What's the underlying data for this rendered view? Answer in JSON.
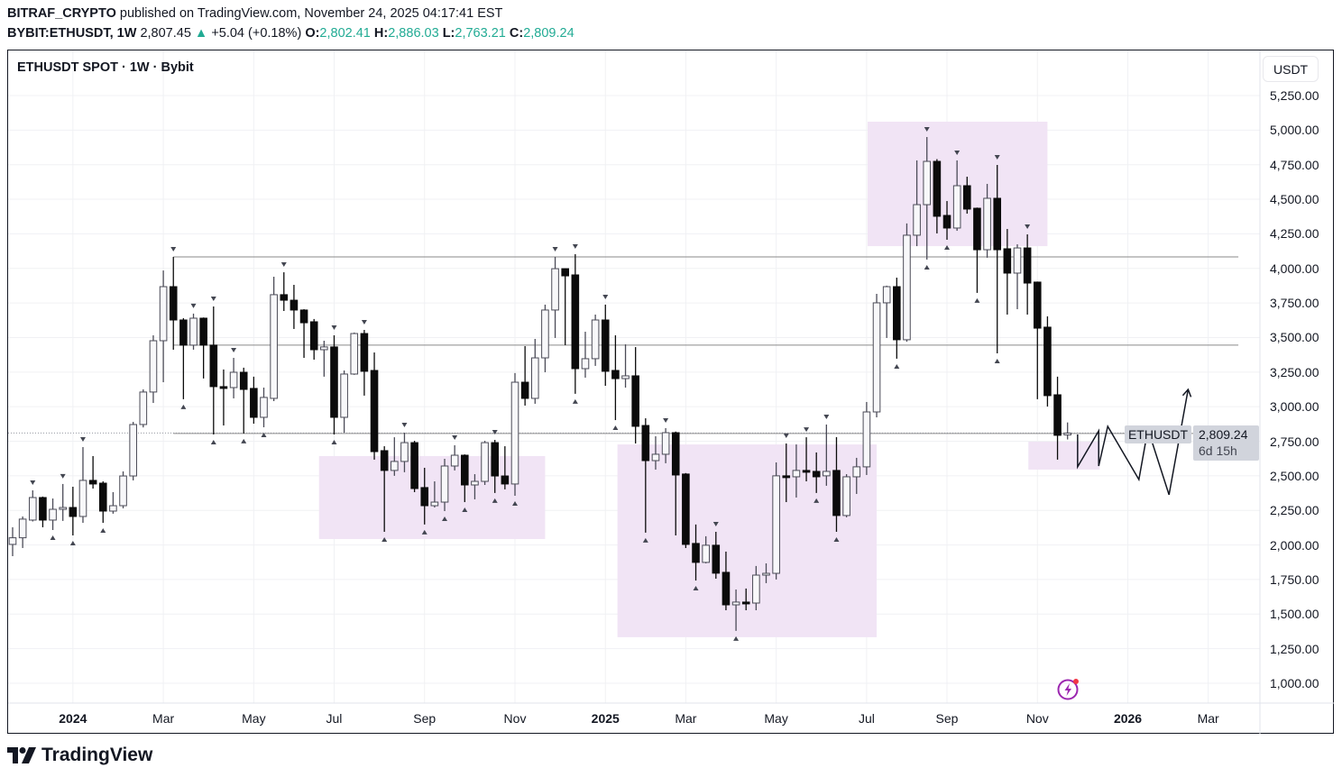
{
  "header": {
    "author": "BITRAF_CRYPTO",
    "published_text": "published on TradingView.com, November 24, 2025 04:17:41 EST",
    "symbol": "BYBIT:ETHUSDT, 1W",
    "last_price": "2,807.45",
    "change": "+5.04 (+0.18%)",
    "o_label": "O:",
    "o": "2,802.41",
    "h_label": "H:",
    "h": "2,886.03",
    "l_label": "L:",
    "l": "2,763.21",
    "c_label": "C:",
    "c": "2,809.24"
  },
  "legend": "ETHUSDT SPOT · 1W · Bybit",
  "currency": "USDT",
  "price_tag": {
    "symbol": "ETHUSDT",
    "price": "2,809.24",
    "countdown": "6d 15h"
  },
  "brand": "TradingView",
  "colors": {
    "up_fill": "#f8f8fa",
    "up_border": "#4b4b57",
    "down": "#0b0b0b",
    "zone": "#f1e4f5",
    "level_line": "#8a8a8a",
    "accent": "#22ab94",
    "bolt": "#9c27b0"
  },
  "chart_data": {
    "type": "candlestick",
    "title": "ETHUSDT SPOT · 1W · Bybit",
    "interval": "1W",
    "first_candle_week": "2023-11-20",
    "ylim": [
      880,
      5370
    ],
    "y_ticks": [
      "5,250.00",
      "5,000.00",
      "4,750.00",
      "4,500.00",
      "4,250.00",
      "4,000.00",
      "3,750.00",
      "3,500.00",
      "3,250.00",
      "3,000.00",
      "2,750.00",
      "2,500.00",
      "2,250.00",
      "2,000.00",
      "1,750.00",
      "1,500.00",
      "1,250.00",
      "1,000.00"
    ],
    "y_tick_values": [
      5250,
      5000,
      4750,
      4500,
      4250,
      4000,
      3750,
      3500,
      3250,
      3000,
      2750,
      2500,
      2250,
      2000,
      1750,
      1500,
      1250,
      1000
    ],
    "x_ticks": [
      {
        "label": "2024",
        "week": 6,
        "year": true
      },
      {
        "label": "Mar",
        "week": 15
      },
      {
        "label": "May",
        "week": 24
      },
      {
        "label": "Jul",
        "week": 32
      },
      {
        "label": "Sep",
        "week": 41
      },
      {
        "label": "Nov",
        "week": 50
      },
      {
        "label": "2025",
        "week": 59,
        "year": true
      },
      {
        "label": "Mar",
        "week": 67
      },
      {
        "label": "May",
        "week": 76
      },
      {
        "label": "Jul",
        "week": 85
      },
      {
        "label": "Sep",
        "week": 93
      },
      {
        "label": "Nov",
        "week": 102
      },
      {
        "label": "2026",
        "week": 111,
        "year": true
      },
      {
        "label": "Mar",
        "week": 119
      }
    ],
    "week_range": [
      -0.5,
      124.5
    ],
    "ohlc": [
      [
        2004,
        2128,
        1919,
        2052
      ],
      [
        2052,
        2206,
        1978,
        2187
      ],
      [
        2180,
        2395,
        2170,
        2343
      ],
      [
        2343,
        2350,
        2128,
        2180
      ],
      [
        2180,
        2336,
        2108,
        2258
      ],
      [
        2258,
        2441,
        2174,
        2271
      ],
      [
        2271,
        2421,
        2069,
        2206
      ],
      [
        2206,
        2708,
        2160,
        2467
      ],
      [
        2467,
        2643,
        2408,
        2441
      ],
      [
        2447,
        2460,
        2160,
        2245
      ],
      [
        2245,
        2382,
        2226,
        2284
      ],
      [
        2284,
        2532,
        2265,
        2499
      ],
      [
        2499,
        2890,
        2467,
        2871
      ],
      [
        2871,
        3125,
        2850,
        3106
      ],
      [
        3106,
        3516,
        3027,
        3477
      ],
      [
        3477,
        3985,
        3177,
        3868
      ],
      [
        3868,
        4083,
        3412,
        3627
      ],
      [
        3627,
        3640,
        3054,
        3445
      ],
      [
        3445,
        3673,
        3412,
        3640
      ],
      [
        3640,
        3645,
        3204,
        3445
      ],
      [
        3445,
        3725,
        2799,
        3145
      ],
      [
        3145,
        3269,
        2864,
        3138
      ],
      [
        3138,
        3353,
        3060,
        3249
      ],
      [
        3249,
        3282,
        2806,
        3125
      ],
      [
        3132,
        3217,
        2877,
        2923
      ],
      [
        2923,
        3138,
        2851,
        3067
      ],
      [
        3060,
        3940,
        3040,
        3810
      ],
      [
        3810,
        3972,
        3692,
        3770
      ],
      [
        3770,
        3881,
        3562,
        3699
      ],
      [
        3699,
        3705,
        3353,
        3607
      ],
      [
        3614,
        3634,
        3340,
        3412
      ],
      [
        3412,
        3477,
        3217,
        3432
      ],
      [
        3432,
        3516,
        2799,
        2923
      ],
      [
        2923,
        3262,
        2812,
        3236
      ],
      [
        3236,
        3536,
        3230,
        3529
      ],
      [
        3529,
        3555,
        3080,
        3256
      ],
      [
        3262,
        3392,
        2617,
        2675
      ],
      [
        2682,
        2714,
        2095,
        2539
      ],
      [
        2539,
        2779,
        2500,
        2604
      ],
      [
        2604,
        2812,
        2526,
        2740
      ],
      [
        2740,
        2753,
        2382,
        2408
      ],
      [
        2415,
        2558,
        2148,
        2284
      ],
      [
        2284,
        2460,
        2271,
        2310
      ],
      [
        2310,
        2623,
        2245,
        2571
      ],
      [
        2571,
        2721,
        2539,
        2649
      ],
      [
        2649,
        2655,
        2310,
        2434
      ],
      [
        2434,
        2512,
        2330,
        2460
      ],
      [
        2460,
        2753,
        2434,
        2740
      ],
      [
        2740,
        2760,
        2376,
        2499
      ],
      [
        2499,
        2714,
        2402,
        2441
      ],
      [
        2441,
        3243,
        2356,
        3177
      ],
      [
        3177,
        3438,
        3008,
        3060
      ],
      [
        3060,
        3490,
        3021,
        3353
      ],
      [
        3353,
        3738,
        3249,
        3699
      ],
      [
        3699,
        4083,
        3497,
        3998
      ],
      [
        3998,
        4000,
        3445,
        3946
      ],
      [
        3953,
        4103,
        3093,
        3275
      ],
      [
        3275,
        3542,
        3210,
        3347
      ],
      [
        3347,
        3666,
        3295,
        3627
      ],
      [
        3627,
        3738,
        3151,
        3256
      ],
      [
        3262,
        3516,
        2903,
        3203
      ],
      [
        3203,
        3451,
        3138,
        3223
      ],
      [
        3223,
        3431,
        2734,
        2858
      ],
      [
        2864,
        2916,
        2089,
        2610
      ],
      [
        2610,
        2786,
        2545,
        2656
      ],
      [
        2656,
        2845,
        2591,
        2812
      ],
      [
        2812,
        2820,
        2069,
        2506
      ],
      [
        2513,
        2520,
        1978,
        2004
      ],
      [
        2011,
        2148,
        1743,
        1874
      ],
      [
        1874,
        2063,
        1867,
        1998
      ],
      [
        1998,
        2095,
        1756,
        1796
      ],
      [
        1802,
        1952,
        1528,
        1567
      ],
      [
        1567,
        1678,
        1379,
        1587
      ],
      [
        1587,
        1685,
        1528,
        1580
      ],
      [
        1580,
        1848,
        1528,
        1782
      ],
      [
        1782,
        1867,
        1724,
        1795
      ],
      [
        1795,
        2597,
        1750,
        2500
      ],
      [
        2500,
        2734,
        2310,
        2493
      ],
      [
        2493,
        2727,
        2343,
        2539
      ],
      [
        2539,
        2779,
        2460,
        2532
      ],
      [
        2532,
        2669,
        2376,
        2493
      ],
      [
        2500,
        2871,
        2428,
        2532
      ],
      [
        2539,
        2780,
        2095,
        2213
      ],
      [
        2213,
        2512,
        2200,
        2493
      ],
      [
        2493,
        2630,
        2369,
        2565
      ],
      [
        2565,
        3034,
        2506,
        2962
      ],
      [
        2962,
        3816,
        2923,
        3751
      ],
      [
        3751,
        3875,
        3497,
        3868
      ],
      [
        3868,
        3933,
        3347,
        3484
      ],
      [
        3484,
        4325,
        3470,
        4240
      ],
      [
        4240,
        4781,
        4161,
        4461
      ],
      [
        4461,
        4950,
        4064,
        4774
      ],
      [
        4774,
        4790,
        4253,
        4377
      ],
      [
        4383,
        4487,
        4207,
        4292
      ],
      [
        4292,
        4781,
        4272,
        4598
      ],
      [
        4598,
        4663,
        4396,
        4429
      ],
      [
        4435,
        4440,
        3823,
        4135
      ],
      [
        4135,
        4611,
        4077,
        4507
      ],
      [
        4507,
        4748,
        3386,
        4135
      ],
      [
        4142,
        4285,
        3666,
        3966
      ],
      [
        3966,
        4174,
        3705,
        4148
      ],
      [
        4148,
        4246,
        3666,
        3894
      ],
      [
        3901,
        3905,
        3054,
        3568
      ],
      [
        3575,
        3653,
        3001,
        3080
      ],
      [
        3086,
        3217,
        2617,
        2793
      ],
      [
        2802,
        2886,
        2763,
        2809
      ]
    ],
    "pivot_high_marks": [
      2,
      5,
      7,
      16,
      18,
      20,
      22,
      27,
      32,
      35,
      39,
      44,
      48,
      54,
      56,
      59,
      65,
      70,
      77,
      79,
      81,
      91,
      94,
      98,
      101
    ],
    "pivot_low_marks": [
      4,
      6,
      9,
      17,
      20,
      23,
      25,
      32,
      37,
      41,
      43,
      45,
      48,
      50,
      56,
      60,
      63,
      68,
      72,
      80,
      82,
      88,
      91,
      93,
      96,
      98
    ],
    "levels": [
      {
        "price": 4083,
        "from_week": 16,
        "to_week": 122
      },
      {
        "price": 3445,
        "from_week": 16,
        "to_week": 122
      },
      {
        "price": 2806,
        "from_week": 16,
        "to_week": 122
      }
    ],
    "zones": [
      {
        "from_week": 30.5,
        "to_week": 53,
        "top": 2643,
        "bottom": 2043
      },
      {
        "from_week": 60.2,
        "to_week": 86,
        "top": 2727,
        "bottom": 1333
      },
      {
        "from_week": 85.1,
        "to_week": 103,
        "top": 5061,
        "bottom": 4161
      },
      {
        "from_week": 101.1,
        "to_week": 108.2,
        "top": 2747,
        "bottom": 2545
      }
    ],
    "projection": [
      [
        106,
        2799
      ],
      [
        106,
        2565
      ],
      [
        108.1,
        2825
      ],
      [
        108.1,
        2571
      ],
      [
        109,
        2858
      ],
      [
        112.1,
        2473
      ],
      [
        113,
        2838
      ],
      [
        115.1,
        2363
      ],
      [
        117,
        3125
      ]
    ],
    "current_price": 2809.24
  }
}
